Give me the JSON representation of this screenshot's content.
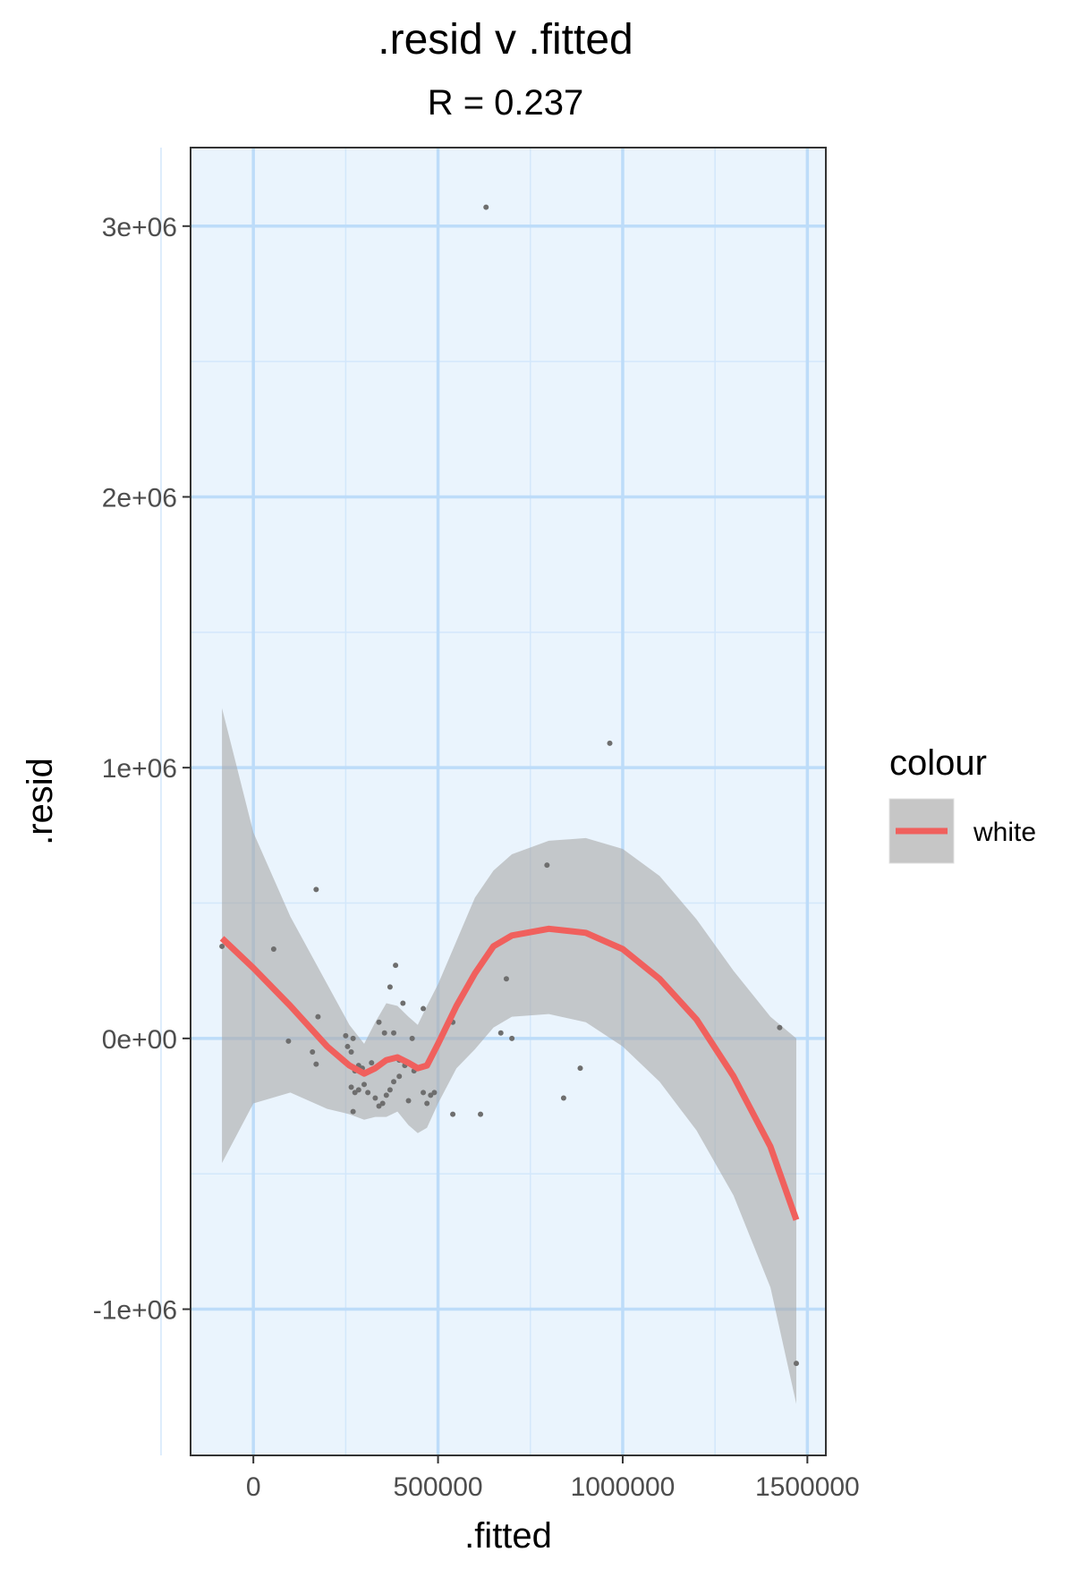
{
  "chart_data": {
    "type": "scatter",
    "title": ".resid v .fitted",
    "subtitle": "R = 0.237",
    "xlabel": ".fitted",
    "ylabel": ".resid",
    "xlim": [
      -170000,
      1550000
    ],
    "ylim": [
      -1540000,
      3290000
    ],
    "x_ticks": [
      {
        "value": 0,
        "label": "0"
      },
      {
        "value": 500000,
        "label": "500000"
      },
      {
        "value": 1000000,
        "label": "1000000"
      },
      {
        "value": 1500000,
        "label": "1500000"
      }
    ],
    "y_ticks": [
      {
        "value": -1000000,
        "label": "-1e+06"
      },
      {
        "value": 0,
        "label": "0e+00"
      },
      {
        "value": 1000000,
        "label": "1e+06"
      },
      {
        "value": 2000000,
        "label": "2e+06"
      },
      {
        "value": 3000000,
        "label": "3e+06"
      }
    ],
    "x_minor": [
      -250000,
      250000,
      750000,
      1250000
    ],
    "y_minor": [
      -500000,
      500000,
      1500000,
      2500000
    ],
    "grid": true,
    "colors": {
      "panel_bg": "#EAF4FD",
      "grid_major": "#BDDCF9",
      "grid_minor": "#D3E7FB",
      "points": "#6E6E6E",
      "smooth_line": "#F0605D",
      "ribbon": "#A9A9A9"
    },
    "points": [
      [
        -85000,
        340000
      ],
      [
        55000,
        330000
      ],
      [
        170000,
        550000
      ],
      [
        175000,
        80000
      ],
      [
        95000,
        -10000
      ],
      [
        160000,
        -50000
      ],
      [
        170000,
        -95000
      ],
      [
        250000,
        10000
      ],
      [
        255000,
        -30000
      ],
      [
        265000,
        -50000
      ],
      [
        270000,
        0
      ],
      [
        275000,
        -120000
      ],
      [
        285000,
        -100000
      ],
      [
        295000,
        -110000
      ],
      [
        320000,
        -90000
      ],
      [
        340000,
        60000
      ],
      [
        355000,
        20000
      ],
      [
        370000,
        190000
      ],
      [
        385000,
        270000
      ],
      [
        380000,
        20000
      ],
      [
        395000,
        -80000
      ],
      [
        405000,
        130000
      ],
      [
        410000,
        -100000
      ],
      [
        430000,
        0
      ],
      [
        460000,
        110000
      ],
      [
        540000,
        60000
      ],
      [
        685000,
        220000
      ],
      [
        795000,
        640000
      ],
      [
        670000,
        20000
      ],
      [
        700000,
        0
      ],
      [
        885000,
        -110000
      ],
      [
        265000,
        -180000
      ],
      [
        275000,
        -200000
      ],
      [
        285000,
        -190000
      ],
      [
        300000,
        -170000
      ],
      [
        310000,
        -200000
      ],
      [
        330000,
        -220000
      ],
      [
        340000,
        -250000
      ],
      [
        360000,
        -210000
      ],
      [
        370000,
        -190000
      ],
      [
        380000,
        -160000
      ],
      [
        395000,
        -140000
      ],
      [
        420000,
        -230000
      ],
      [
        460000,
        -200000
      ],
      [
        470000,
        -240000
      ],
      [
        480000,
        -210000
      ],
      [
        490000,
        -200000
      ],
      [
        540000,
        -280000
      ],
      [
        615000,
        -280000
      ],
      [
        270000,
        -270000
      ],
      [
        350000,
        -240000
      ],
      [
        840000,
        -220000
      ],
      [
        435000,
        -120000
      ],
      [
        630000,
        3070000
      ],
      [
        965000,
        1090000
      ],
      [
        1425000,
        40000
      ],
      [
        1470000,
        -1200000
      ]
    ],
    "smooth": [
      [
        -85000,
        370000
      ],
      [
        0,
        260000
      ],
      [
        100000,
        120000
      ],
      [
        200000,
        -30000
      ],
      [
        260000,
        -100000
      ],
      [
        300000,
        -130000
      ],
      [
        330000,
        -110000
      ],
      [
        360000,
        -80000
      ],
      [
        390000,
        -70000
      ],
      [
        420000,
        -90000
      ],
      [
        445000,
        -110000
      ],
      [
        470000,
        -100000
      ],
      [
        500000,
        -20000
      ],
      [
        550000,
        120000
      ],
      [
        600000,
        240000
      ],
      [
        650000,
        340000
      ],
      [
        700000,
        380000
      ],
      [
        800000,
        405000
      ],
      [
        900000,
        390000
      ],
      [
        1000000,
        330000
      ],
      [
        1100000,
        220000
      ],
      [
        1200000,
        70000
      ],
      [
        1300000,
        -140000
      ],
      [
        1400000,
        -400000
      ],
      [
        1470000,
        -670000
      ]
    ],
    "ribbon_upper": [
      [
        -85000,
        1220000
      ],
      [
        0,
        760000
      ],
      [
        100000,
        450000
      ],
      [
        200000,
        200000
      ],
      [
        260000,
        50000
      ],
      [
        300000,
        -20000
      ],
      [
        330000,
        60000
      ],
      [
        360000,
        130000
      ],
      [
        390000,
        120000
      ],
      [
        420000,
        80000
      ],
      [
        445000,
        50000
      ],
      [
        470000,
        120000
      ],
      [
        500000,
        200000
      ],
      [
        550000,
        360000
      ],
      [
        600000,
        520000
      ],
      [
        650000,
        620000
      ],
      [
        700000,
        680000
      ],
      [
        800000,
        730000
      ],
      [
        900000,
        740000
      ],
      [
        1000000,
        700000
      ],
      [
        1100000,
        600000
      ],
      [
        1200000,
        440000
      ],
      [
        1300000,
        250000
      ],
      [
        1400000,
        80000
      ],
      [
        1470000,
        0
      ]
    ],
    "ribbon_lower": [
      [
        -85000,
        -460000
      ],
      [
        0,
        -240000
      ],
      [
        100000,
        -200000
      ],
      [
        200000,
        -260000
      ],
      [
        260000,
        -280000
      ],
      [
        300000,
        -300000
      ],
      [
        330000,
        -290000
      ],
      [
        360000,
        -290000
      ],
      [
        390000,
        -270000
      ],
      [
        420000,
        -320000
      ],
      [
        445000,
        -350000
      ],
      [
        470000,
        -330000
      ],
      [
        500000,
        -240000
      ],
      [
        550000,
        -110000
      ],
      [
        600000,
        -40000
      ],
      [
        650000,
        40000
      ],
      [
        700000,
        80000
      ],
      [
        800000,
        90000
      ],
      [
        900000,
        60000
      ],
      [
        1000000,
        -30000
      ],
      [
        1100000,
        -160000
      ],
      [
        1200000,
        -340000
      ],
      [
        1300000,
        -580000
      ],
      [
        1400000,
        -920000
      ],
      [
        1470000,
        -1350000
      ]
    ],
    "legend": {
      "title": "colour",
      "items": [
        {
          "label": "white"
        }
      ],
      "position": "right"
    }
  }
}
